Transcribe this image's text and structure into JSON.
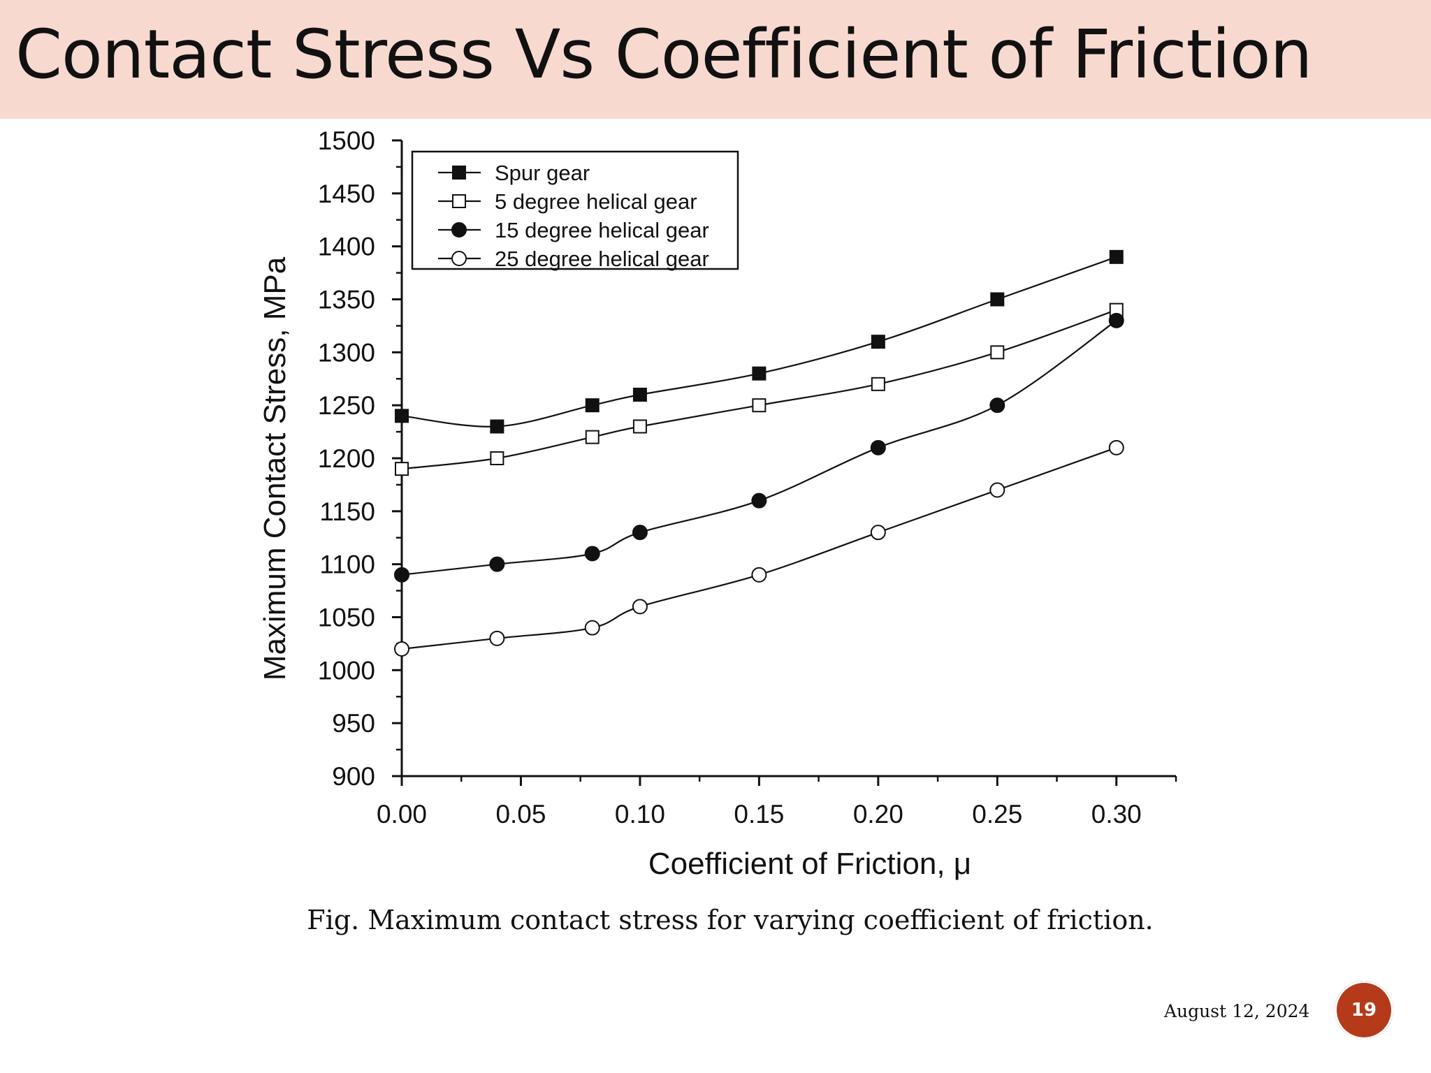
{
  "slide": {
    "title": "Contact Stress Vs Coefficient of Friction",
    "caption": "Fig. Maximum contact stress for varying coefficient of friction.",
    "date": "August 12, 2024",
    "page_number": "19",
    "colors": {
      "title_band": "#f8d9d0",
      "page_badge": "#b53a1a"
    }
  },
  "chart_data": {
    "type": "line",
    "xlabel": "Coefficient of Friction, μ",
    "ylabel": "Maximum Contact Stress, MPa",
    "xlim": [
      0.0,
      0.325
    ],
    "ylim": [
      900,
      1500
    ],
    "x_ticks": [
      "0.00",
      "0.05",
      "0.10",
      "0.15",
      "0.20",
      "0.25",
      "0.30"
    ],
    "y_ticks": [
      "900",
      "950",
      "1000",
      "1050",
      "1100",
      "1150",
      "1200",
      "1250",
      "1300",
      "1350",
      "1400",
      "1450",
      "1500"
    ],
    "legend_position": "top-left",
    "grid": false,
    "x": [
      0.0,
      0.04,
      0.08,
      0.1,
      0.15,
      0.2,
      0.25,
      0.3
    ],
    "series": [
      {
        "name": "Spur gear",
        "marker": "square-filled",
        "values": [
          1240,
          1230,
          1250,
          1260,
          1280,
          1310,
          1350,
          1390
        ]
      },
      {
        "name": "5 degree helical gear",
        "marker": "square-open",
        "values": [
          1190,
          1200,
          1220,
          1230,
          1250,
          1270,
          1300,
          1340
        ]
      },
      {
        "name": "15 degree helical gear",
        "marker": "circle-filled",
        "values": [
          1090,
          1100,
          1110,
          1130,
          1160,
          1210,
          1250,
          1330
        ]
      },
      {
        "name": "25 degree helical gear",
        "marker": "circle-open",
        "values": [
          1020,
          1030,
          1040,
          1060,
          1090,
          1130,
          1170,
          1210
        ]
      }
    ]
  }
}
